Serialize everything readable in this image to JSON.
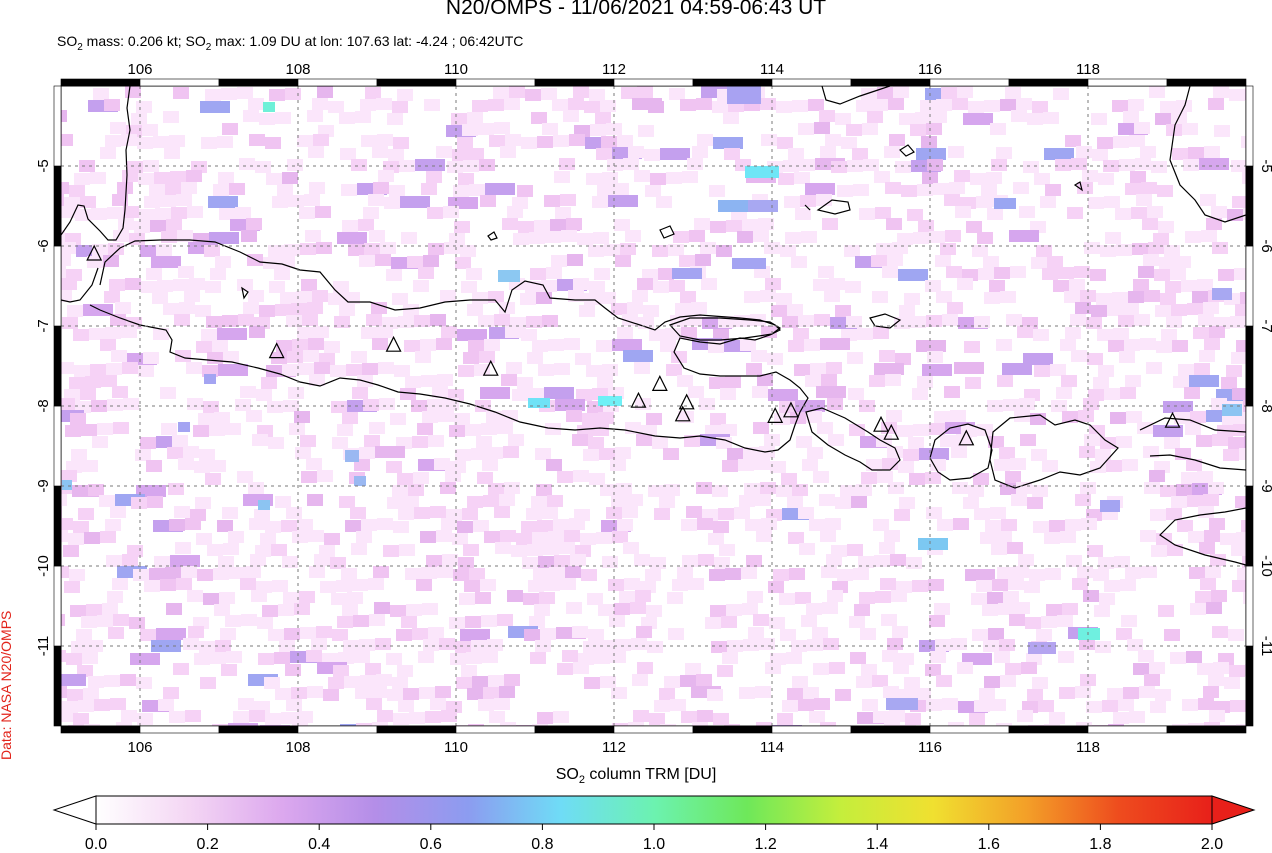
{
  "header": {
    "title": "N20/OMPS - 11/06/2021 04:59-06:43 UT",
    "subtitle_pre": "SO",
    "subtitle_mid": " mass: 0.206 kt; SO",
    "subtitle_post": " max: 1.09 DU at lon: 107.63 lat: -4.24 ; 06:42UTC",
    "sub_two": "2"
  },
  "credit": "Data: NASA N20/OMPS",
  "map": {
    "lon_ticks": [
      "106",
      "108",
      "110",
      "112",
      "114",
      "116",
      "118"
    ],
    "lat_ticks": [
      "-5",
      "-6",
      "-7",
      "-8",
      "-9",
      "-10",
      "-11"
    ],
    "lon_range": [
      105,
      120
    ],
    "lat_range": [
      -12,
      -4
    ]
  },
  "colorbar": {
    "label_pre": "SO",
    "label_sub": "2",
    "label_post": " column TRM [DU]",
    "ticks": [
      "0.0",
      "0.2",
      "0.4",
      "0.6",
      "0.8",
      "1.0",
      "1.2",
      "1.4",
      "1.6",
      "1.8",
      "2.0"
    ],
    "colors": [
      "#ffffff",
      "#f4d6f4",
      "#dca8ee",
      "#b48ee8",
      "#8c9cf0",
      "#6fdcf6",
      "#6cf2b0",
      "#6ee85a",
      "#c4ee3c",
      "#f0e030",
      "#f3a028",
      "#ee4c1e",
      "#e8201a"
    ]
  },
  "volcanoes": [
    {
      "lon": 105.42,
      "lat": -6.1
    },
    {
      "lon": 107.73,
      "lat": -7.32
    },
    {
      "lon": 109.21,
      "lat": -7.24
    },
    {
      "lon": 110.44,
      "lat": -7.54
    },
    {
      "lon": 112.31,
      "lat": -7.94
    },
    {
      "lon": 112.58,
      "lat": -7.73
    },
    {
      "lon": 112.92,
      "lat": -7.96
    },
    {
      "lon": 112.87,
      "lat": -8.11
    },
    {
      "lon": 114.04,
      "lat": -8.13
    },
    {
      "lon": 114.24,
      "lat": -8.06
    },
    {
      "lon": 115.38,
      "lat": -8.24
    },
    {
      "lon": 115.51,
      "lat": -8.34
    },
    {
      "lon": 116.46,
      "lat": -8.41
    },
    {
      "lon": 119.07,
      "lat": -8.19
    }
  ]
}
